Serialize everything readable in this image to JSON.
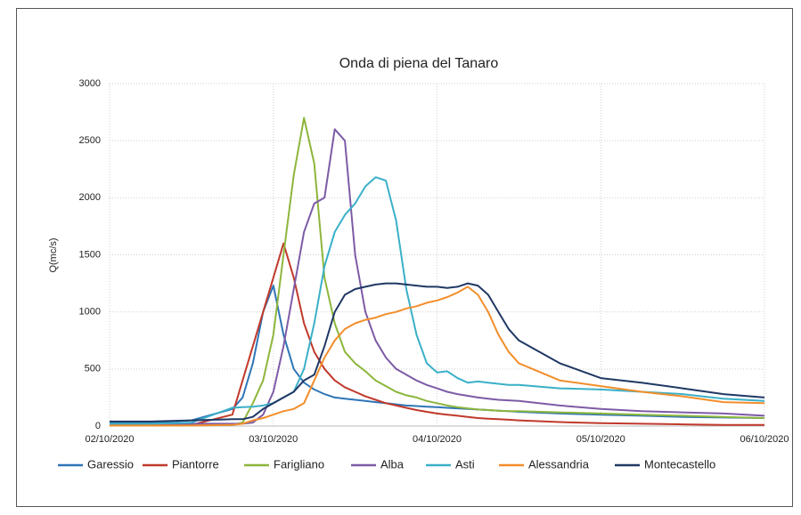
{
  "chart_data": {
    "type": "line",
    "title": "Onda di piena del Tanaro",
    "y_label": "Q(mc/s)",
    "x": [
      0,
      0.25,
      0.5,
      0.75,
      0.8125,
      0.875,
      0.9375,
      1,
      1.0625,
      1.125,
      1.1875,
      1.25,
      1.3125,
      1.375,
      1.4375,
      1.5,
      1.5625,
      1.625,
      1.6875,
      1.75,
      1.8125,
      1.875,
      1.9375,
      2,
      2.0625,
      2.125,
      2.1875,
      2.25,
      2.3125,
      2.375,
      2.4375,
      2.5,
      2.75,
      3,
      3.25,
      3.5,
      3.75,
      4
    ],
    "series": [
      {
        "name": "Garessio",
        "color": "#2e75b6",
        "values": [
          30,
          30,
          50,
          150,
          250,
          550,
          1000,
          1230,
          800,
          500,
          380,
          320,
          280,
          250,
          240,
          230,
          220,
          210,
          200,
          190,
          180,
          175,
          170,
          165,
          160,
          155,
          150,
          145,
          140,
          135,
          130,
          125,
          110,
          100,
          90,
          80,
          75,
          70
        ]
      },
      {
        "name": "Piantorre",
        "color": "#c0392b",
        "values": [
          10,
          10,
          10,
          100,
          400,
          700,
          1000,
          1300,
          1600,
          1300,
          900,
          650,
          500,
          400,
          340,
          300,
          260,
          230,
          200,
          180,
          160,
          140,
          125,
          110,
          100,
          90,
          80,
          70,
          65,
          60,
          55,
          50,
          35,
          25,
          20,
          15,
          10,
          10
        ]
      },
      {
        "name": "Farigliano",
        "color": "#8db63c",
        "values": [
          5,
          5,
          5,
          10,
          30,
          200,
          400,
          800,
          1500,
          2200,
          2700,
          2300,
          1300,
          900,
          650,
          550,
          480,
          400,
          350,
          300,
          270,
          250,
          220,
          200,
          180,
          165,
          155,
          145,
          140,
          135,
          130,
          130,
          120,
          110,
          100,
          90,
          80,
          70
        ]
      },
      {
        "name": "Alba",
        "color": "#7d5ba6",
        "values": [
          20,
          20,
          20,
          20,
          20,
          30,
          100,
          300,
          700,
          1200,
          1700,
          1950,
          2000,
          2600,
          2500,
          1500,
          1000,
          750,
          600,
          500,
          450,
          400,
          360,
          330,
          300,
          280,
          265,
          250,
          240,
          230,
          225,
          220,
          180,
          150,
          130,
          120,
          110,
          90
        ]
      },
      {
        "name": "Asti",
        "color": "#3ab0c8",
        "values": [
          20,
          20,
          30,
          160,
          165,
          170,
          180,
          200,
          250,
          300,
          500,
          900,
          1400,
          1700,
          1850,
          1950,
          2100,
          2180,
          2150,
          1800,
          1200,
          800,
          550,
          470,
          480,
          420,
          380,
          390,
          380,
          370,
          360,
          360,
          330,
          320,
          300,
          280,
          240,
          220
        ]
      },
      {
        "name": "Alessandria",
        "color": "#f28e2b",
        "values": [
          5,
          5,
          5,
          10,
          20,
          50,
          70,
          100,
          130,
          150,
          200,
          400,
          600,
          750,
          850,
          900,
          930,
          950,
          980,
          1000,
          1030,
          1050,
          1080,
          1100,
          1130,
          1170,
          1220,
          1150,
          1000,
          800,
          650,
          550,
          400,
          350,
          300,
          260,
          210,
          200
        ]
      },
      {
        "name": "Montecastello",
        "color": "#1f3864",
        "values": [
          40,
          40,
          50,
          60,
          60,
          80,
          150,
          200,
          250,
          300,
          400,
          450,
          700,
          1000,
          1150,
          1200,
          1220,
          1240,
          1250,
          1250,
          1240,
          1230,
          1220,
          1220,
          1210,
          1220,
          1250,
          1230,
          1150,
          1000,
          850,
          750,
          550,
          420,
          380,
          330,
          280,
          250
        ]
      }
    ],
    "xlim": [
      0,
      4
    ],
    "xticks": [
      {
        "value": 0,
        "label": "02/10/2020"
      },
      {
        "value": 1,
        "label": "03/10/2020"
      },
      {
        "value": 2,
        "label": "04/10/2020"
      },
      {
        "value": 3,
        "label": "05/10/2020"
      },
      {
        "value": 4,
        "label": "06/10/2020"
      }
    ],
    "ylim": [
      0,
      3000
    ],
    "yticks": [
      0,
      500,
      1000,
      1500,
      2000,
      2500,
      3000
    ],
    "grid": true,
    "legend": "bottom"
  }
}
